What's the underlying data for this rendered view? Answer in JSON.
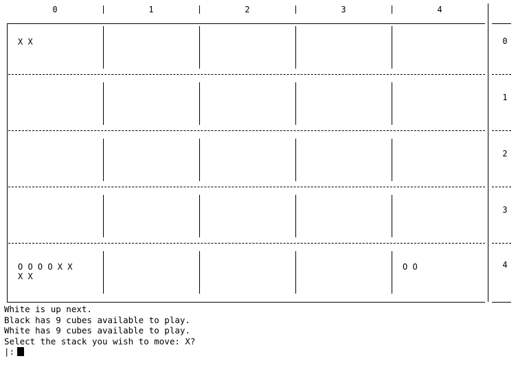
{
  "board": {
    "column_labels": [
      "0",
      "1",
      "2",
      "3",
      "4"
    ],
    "row_labels": [
      "0",
      "1",
      "2",
      "3",
      "4"
    ],
    "cells": [
      [
        "X X",
        "",
        "",
        "",
        ""
      ],
      [
        "",
        "",
        "",
        "",
        ""
      ],
      [
        "",
        "",
        "",
        "",
        ""
      ],
      [
        "",
        "",
        "",
        "",
        ""
      ],
      [
        "O O O O X X\nX X",
        "",
        "",
        "",
        "O O"
      ]
    ]
  },
  "console": {
    "lines": [
      "White is up next.",
      "Black has 9 cubes available to play.",
      "White has 9 cubes available to play.",
      "Select the stack you wish to move: X?"
    ],
    "prompt": "|:"
  }
}
